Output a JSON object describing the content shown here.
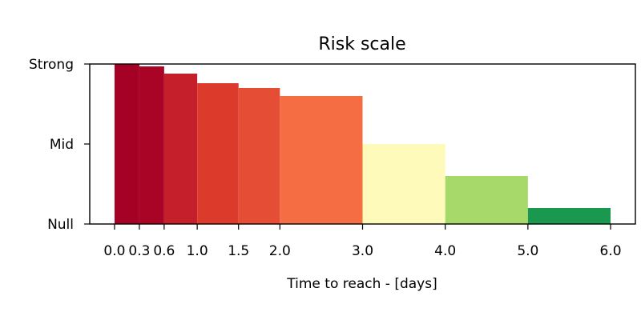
{
  "chart_data": {
    "type": "bar",
    "title": "Risk scale",
    "xlabel": "Time to reach - [days]",
    "ylabel": "",
    "xlim": [
      -0.3,
      6.3
    ],
    "ylim": [
      0,
      2
    ],
    "x_ticks": [
      0.0,
      0.3,
      0.6,
      1.0,
      1.5,
      2.0,
      3.0,
      4.0,
      5.0,
      6.0
    ],
    "x_tick_labels": [
      "0.0",
      "0.3",
      "0.6",
      "1.0",
      "1.5",
      "2.0",
      "3.0",
      "4.0",
      "5.0",
      "6.0"
    ],
    "y_ticks": [
      0,
      1,
      2
    ],
    "y_tick_labels": [
      "Null",
      "Mid",
      "Strong"
    ],
    "grid": false,
    "legend": "none",
    "bars": [
      {
        "x_start": 0.0,
        "x_end": 0.3,
        "value": 2.0,
        "color": "#a50026"
      },
      {
        "x_start": 0.3,
        "x_end": 0.6,
        "value": 1.97,
        "color": "#a90426"
      },
      {
        "x_start": 0.6,
        "x_end": 1.0,
        "value": 1.88,
        "color": "#c41f2b"
      },
      {
        "x_start": 1.0,
        "x_end": 1.5,
        "value": 1.76,
        "color": "#dc3b2b"
      },
      {
        "x_start": 1.5,
        "x_end": 2.0,
        "value": 1.7,
        "color": "#e54e35"
      },
      {
        "x_start": 2.0,
        "x_end": 3.0,
        "value": 1.6,
        "color": "#f46d43"
      },
      {
        "x_start": 3.0,
        "x_end": 4.0,
        "value": 1.0,
        "color": "#fefbba"
      },
      {
        "x_start": 4.0,
        "x_end": 5.0,
        "value": 0.6,
        "color": "#a6d96a"
      },
      {
        "x_start": 5.0,
        "x_end": 6.0,
        "value": 0.2,
        "color": "#1a9850"
      }
    ]
  }
}
